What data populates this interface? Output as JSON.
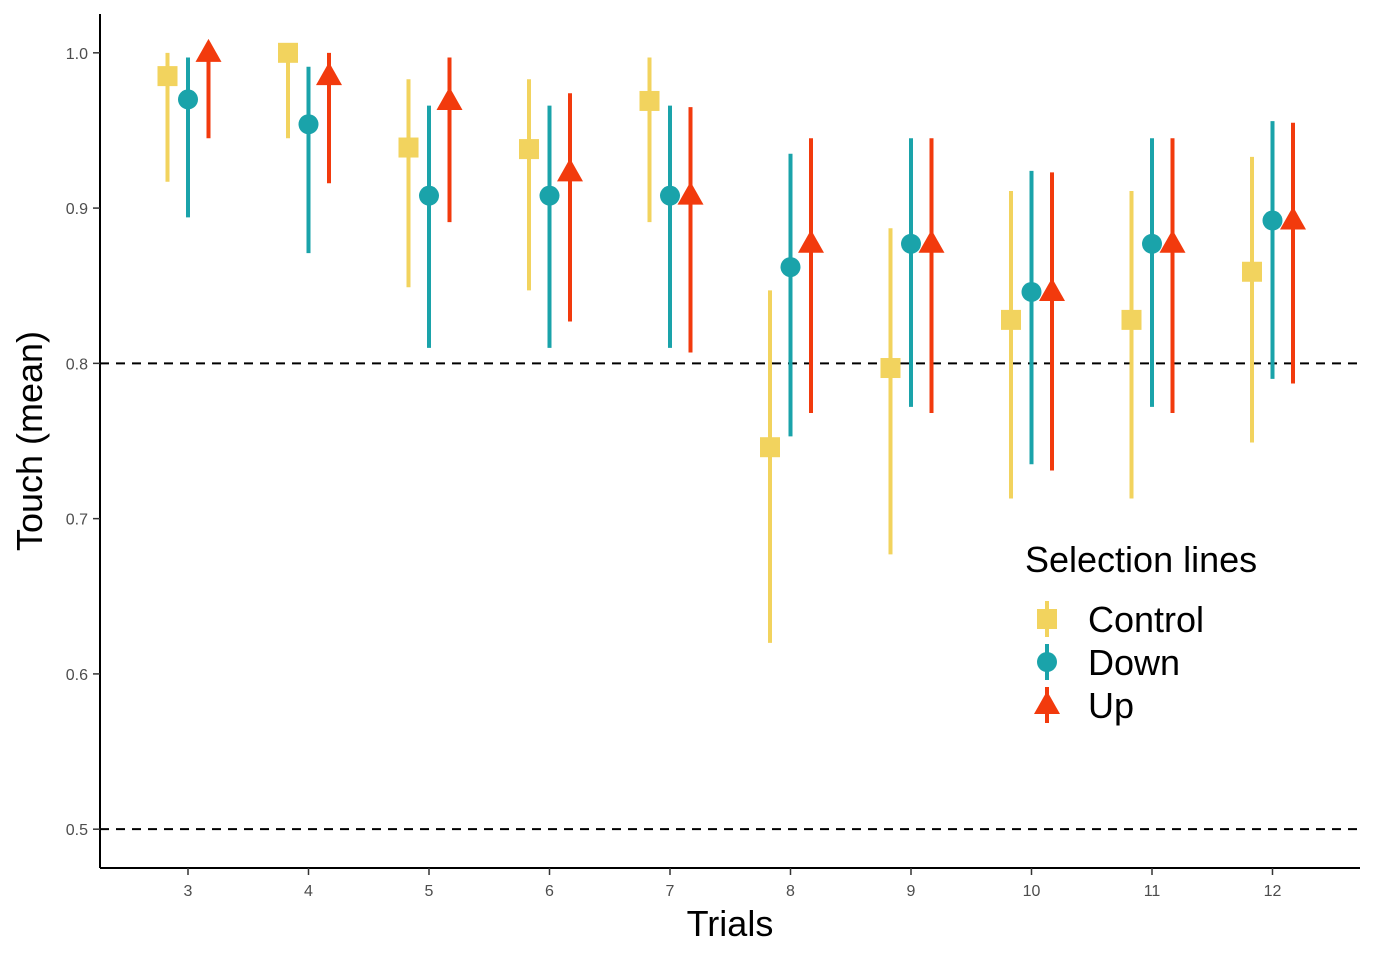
{
  "chart_data": {
    "type": "scatter",
    "subtype": "pointrange",
    "xlabel": "Trials",
    "ylabel": "Touch (mean)",
    "categories": [
      "3",
      "4",
      "5",
      "6",
      "7",
      "8",
      "9",
      "10",
      "11",
      "12"
    ],
    "ylim": [
      0.475,
      1.025
    ],
    "yticks": [
      0.5,
      0.6,
      0.7,
      0.8,
      0.9,
      1.0
    ],
    "ytick_labels": [
      "0.5",
      "0.6",
      "0.7",
      "0.8",
      "0.9",
      "1.0"
    ],
    "reference_lines": [
      0.8,
      0.5
    ],
    "grid": false,
    "legend": {
      "title": "Selection lines",
      "placement": "right-center-inside"
    },
    "series": [
      {
        "name": "Control",
        "shape": "square",
        "color": "#F2D35E",
        "mean": [
          0.985,
          1.0,
          0.939,
          0.938,
          0.969,
          0.746,
          0.797,
          0.828,
          0.828,
          0.859
        ],
        "lower": [
          0.917,
          0.945,
          0.849,
          0.847,
          0.891,
          0.62,
          0.677,
          0.713,
          0.713,
          0.749
        ],
        "upper": [
          1.0,
          1.0,
          0.983,
          0.983,
          0.997,
          0.847,
          0.887,
          0.911,
          0.911,
          0.933
        ]
      },
      {
        "name": "Down",
        "shape": "circle",
        "color": "#1AA3AA",
        "mean": [
          0.97,
          0.954,
          0.908,
          0.908,
          0.908,
          0.862,
          0.877,
          0.846,
          0.877,
          0.892
        ],
        "lower": [
          0.894,
          0.871,
          0.81,
          0.81,
          0.81,
          0.753,
          0.772,
          0.735,
          0.772,
          0.79
        ],
        "upper": [
          0.997,
          0.991,
          0.966,
          0.966,
          0.966,
          0.935,
          0.945,
          0.924,
          0.945,
          0.956
        ]
      },
      {
        "name": "Up",
        "shape": "triangle",
        "color": "#F23A0D",
        "mean": [
          1.0,
          0.985,
          0.969,
          0.923,
          0.908,
          0.877,
          0.877,
          0.846,
          0.877,
          0.892
        ],
        "lower": [
          0.945,
          0.916,
          0.891,
          0.827,
          0.807,
          0.768,
          0.768,
          0.731,
          0.768,
          0.787
        ],
        "upper": [
          1.0,
          1.0,
          0.997,
          0.974,
          0.965,
          0.945,
          0.945,
          0.923,
          0.945,
          0.955
        ]
      }
    ]
  }
}
